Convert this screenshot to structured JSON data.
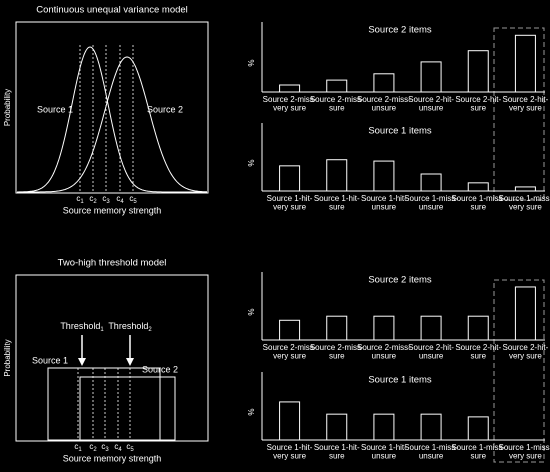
{
  "models": [
    {
      "title": "Continuous unequal variance model",
      "ylabel": "Probability",
      "xlabel": "Source memory strength",
      "source_labels": [
        "Source 1",
        "Source 2"
      ],
      "criteria": [
        [
          "c",
          "1"
        ],
        [
          "c",
          "2"
        ],
        [
          "c",
          "3"
        ],
        [
          "c",
          "4"
        ],
        [
          "c",
          "5"
        ]
      ]
    },
    {
      "title": "Two-high threshold model",
      "ylabel": "Probability",
      "xlabel": "Source memory strength",
      "source_labels": [
        "Source 1",
        "Source 2"
      ],
      "criteria": [
        [
          "c",
          "1"
        ],
        [
          "c",
          "2"
        ],
        [
          "c",
          "3"
        ],
        [
          "c",
          "4"
        ],
        [
          "c",
          "5"
        ]
      ],
      "thresholds": [
        [
          "Threshold",
          "1"
        ],
        [
          "Threshold",
          "2"
        ]
      ]
    }
  ],
  "chart_data": [
    {
      "type": "bar",
      "title": "Source 2 items",
      "ylabel": "%",
      "color": "#ffffff",
      "ylim": [
        0,
        100
      ],
      "categories": [
        [
          "Source 2-miss-",
          "very sure"
        ],
        [
          "Source 2-miss-",
          "sure"
        ],
        [
          "Source 2-miss-",
          "unsure"
        ],
        [
          "Source 2-hit-",
          "unsure"
        ],
        [
          "Source 2-hit-",
          "sure"
        ],
        [
          "Source 2-hit-",
          "very sure"
        ]
      ],
      "values": [
        10,
        17,
        26,
        43,
        59,
        81
      ]
    },
    {
      "type": "bar",
      "title": "Source 1 items",
      "ylabel": "%",
      "color": "#ffffff",
      "ylim": [
        0,
        100
      ],
      "categories": [
        [
          "Source 1-hit-",
          "very sure"
        ],
        [
          "Source 1-hit-",
          "sure"
        ],
        [
          "Source 1-hit-",
          "unsure"
        ],
        [
          "Source 1-miss-",
          "unsure"
        ],
        [
          "Source 1-miss-",
          "sure"
        ],
        [
          "Source 1-miss-",
          "very sure"
        ]
      ],
      "values": [
        37,
        46,
        44,
        25,
        12,
        6
      ]
    },
    {
      "type": "bar",
      "title": "Source 2 items",
      "ylabel": "%",
      "color": "#ffffff",
      "ylim": [
        0,
        100
      ],
      "categories": [
        [
          "Source 2-miss-",
          "very sure"
        ],
        [
          "Source 2-miss-",
          "sure"
        ],
        [
          "Source 2-miss-",
          "unsure"
        ],
        [
          "Source 2-hit-",
          "unsure"
        ],
        [
          "Source 2-hit-",
          "sure"
        ],
        [
          "Source 2-hit-",
          "very sure"
        ]
      ],
      "values": [
        29,
        35,
        35,
        35,
        35,
        78
      ]
    },
    {
      "type": "bar",
      "title": "Source 1 items",
      "ylabel": "%",
      "color": "#ffffff",
      "ylim": [
        0,
        100
      ],
      "categories": [
        [
          "Source 1-hit-",
          "very sure"
        ],
        [
          "Source 1-hit-",
          "sure"
        ],
        [
          "Source 1-hit-",
          "unsure"
        ],
        [
          "Source 1-miss-",
          "unsure"
        ],
        [
          "Source 1-miss-",
          "sure"
        ],
        [
          "Source 1-miss-",
          "very sure"
        ]
      ],
      "values": [
        56,
        38,
        38,
        38,
        34,
        0
      ]
    }
  ]
}
